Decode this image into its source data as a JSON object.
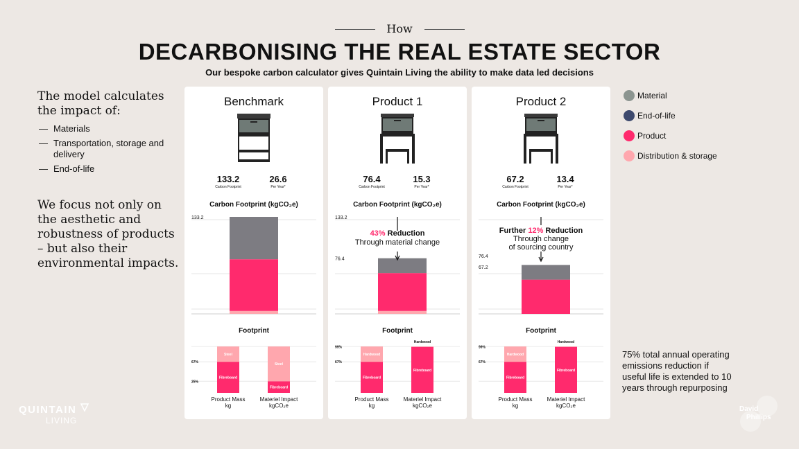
{
  "header": {
    "how": "How",
    "title": "DECARBONISING THE REAL ESTATE SECTOR",
    "subtitle": "Our bespoke carbon calculator gives Quintain Living the ability to make data led decisions"
  },
  "left": {
    "intro": "The model calculates the impact of:",
    "bullets": [
      "Materials",
      "Transportation, storage and delivery",
      "End-of-life"
    ],
    "focus": "We focus not only on the aesthetic and robustness of products – but also their environmental impacts."
  },
  "legend": [
    {
      "label": "Material",
      "color": "#8c9590"
    },
    {
      "label": "End-of-life",
      "color": "#3e4a6e"
    },
    {
      "label": "Product",
      "color": "#ff2a6d"
    },
    {
      "label": "Distribution & storage",
      "color": "#ffa7ae"
    }
  ],
  "colors": {
    "grey": "#7d7c82",
    "pink": "#ff2a6d",
    "light_pink": "#ffa7ae",
    "cabinet_top": "#3a3a3a",
    "drawer": "#6f7a76"
  },
  "total_note": "75% total annual operating emissions reduction if useful life is extended to 10 years through repurposing",
  "logos": {
    "quintain": "QUINTAIN",
    "living": "LIVING",
    "david": "David",
    "phillips": "Phillips"
  },
  "cards": [
    {
      "title": "Benchmark",
      "footprint": "133.2",
      "footprint_label": "Carbon Footprint",
      "per_year": "26.6",
      "per_year_label": "Per Year*",
      "cf_title": "Carbon Footprint (kgCO₂e)",
      "fp_title": "Footprint",
      "fp_label_1": "Product Mass",
      "fp_unit_1": "kg",
      "fp_label_2": "Materiel Impact",
      "fp_unit_2": "kgCO₂e"
    },
    {
      "title": "Product 1",
      "footprint": "76.4",
      "footprint_label": "Carbon Footprint",
      "per_year": "15.3",
      "per_year_label": "Per Year*",
      "cf_title": "Carbon Footprint (kgCO₂e)",
      "fp_title": "Footprint",
      "fp_label_1": "Product Mass",
      "fp_unit_1": "kg",
      "fp_label_2": "Materiel Impact",
      "fp_unit_2": "kgCO₂e"
    },
    {
      "title": "Product 2",
      "footprint": "67.2",
      "footprint_label": "Carbon Footprint",
      "per_year": "13.4",
      "per_year_label": "Per Year*",
      "cf_title": "Carbon Footprint (kgCO₂e)",
      "fp_title": "Footprint",
      "fp_label_1": "Product Mass",
      "fp_unit_1": "kg",
      "fp_label_2": "Materiel Impact",
      "fp_unit_2": "kgCO₂e"
    }
  ],
  "chart_data": [
    {
      "type": "bar",
      "title": "Carbon Footprint (kgCO₂e)",
      "card": "Benchmark",
      "ylim": [
        0,
        133.2
      ],
      "tick_labels": [
        "133.2"
      ],
      "total": 133.2,
      "segments": [
        {
          "name": "Distribution & storage",
          "value": 4,
          "color": "#ffa7ae"
        },
        {
          "name": "Product",
          "value": 71,
          "color": "#ff2a6d"
        },
        {
          "name": "Material",
          "value": 58.2,
          "color": "#7d7c82"
        }
      ]
    },
    {
      "type": "bar",
      "title": "Carbon Footprint (kgCO₂e)",
      "card": "Product 1",
      "ylim": [
        0,
        133.2
      ],
      "tick_labels": [
        "133.2",
        "76.4"
      ],
      "total": 76.4,
      "segments": [
        {
          "name": "Distribution & storage",
          "value": 4,
          "color": "#ffa7ae"
        },
        {
          "name": "Product",
          "value": 52,
          "color": "#ff2a6d"
        },
        {
          "name": "Material",
          "value": 20.4,
          "color": "#7d7c82"
        }
      ],
      "annotation": {
        "pct": "43%",
        "word": "Reduction",
        "line2": "Through material change"
      }
    },
    {
      "type": "bar",
      "title": "Carbon Footprint (kgCO₂e)",
      "card": "Product 2",
      "ylim": [
        0,
        133.2
      ],
      "tick_labels": [
        "76.4",
        "67.2"
      ],
      "total": 67.2,
      "segments": [
        {
          "name": "Product",
          "value": 47,
          "color": "#ff2a6d"
        },
        {
          "name": "Material",
          "value": 20.2,
          "color": "#7d7c82"
        }
      ],
      "annotation": {
        "prefix": "Further",
        "pct": "12%",
        "word": "Reduction",
        "line2": "Through change",
        "line3": "of sourcing country"
      }
    },
    {
      "type": "bar",
      "title": "Footprint",
      "card": "Benchmark",
      "ylim": [
        0,
        100
      ],
      "tick_labels": [
        "67%",
        "25%"
      ],
      "categories": [
        "Product Mass kg",
        "Materiel Impact kgCO₂e"
      ],
      "stacks": [
        [
          {
            "name": "Fibreboard",
            "value": 67,
            "color": "#ff2a6d"
          },
          {
            "name": "Steel",
            "value": 33,
            "color": "#ffa7ae"
          }
        ],
        [
          {
            "name": "Fibreboard",
            "value": 25,
            "color": "#ff2a6d"
          },
          {
            "name": "Steel",
            "value": 75,
            "color": "#ffa7ae"
          }
        ]
      ]
    },
    {
      "type": "bar",
      "title": "Footprint",
      "card": "Product 1",
      "ylim": [
        0,
        100
      ],
      "tick_labels": [
        "99%",
        "67%"
      ],
      "categories": [
        "Product Mass kg",
        "Materiel Impact kgCO₂e"
      ],
      "stacks": [
        [
          {
            "name": "Fibreboard",
            "value": 67,
            "color": "#ff2a6d"
          },
          {
            "name": "Hardwood",
            "value": 33,
            "color": "#ffa7ae"
          }
        ],
        [
          {
            "name": "Fibreboard",
            "value": 99,
            "color": "#ff2a6d"
          },
          {
            "name": "Hardwood",
            "value": 1,
            "color": "#ffa7ae"
          }
        ]
      ]
    },
    {
      "type": "bar",
      "title": "Footprint",
      "card": "Product 2",
      "ylim": [
        0,
        100
      ],
      "tick_labels": [
        "99%",
        "67%"
      ],
      "categories": [
        "Product Mass kg",
        "Materiel Impact kgCO₂e"
      ],
      "stacks": [
        [
          {
            "name": "Fibreboard",
            "value": 67,
            "color": "#ff2a6d"
          },
          {
            "name": "Hardwood",
            "value": 33,
            "color": "#ffa7ae"
          }
        ],
        [
          {
            "name": "Fibreboard",
            "value": 99,
            "color": "#ff2a6d"
          },
          {
            "name": "Hardwood",
            "value": 1,
            "color": "#ffa7ae"
          }
        ]
      ]
    }
  ]
}
